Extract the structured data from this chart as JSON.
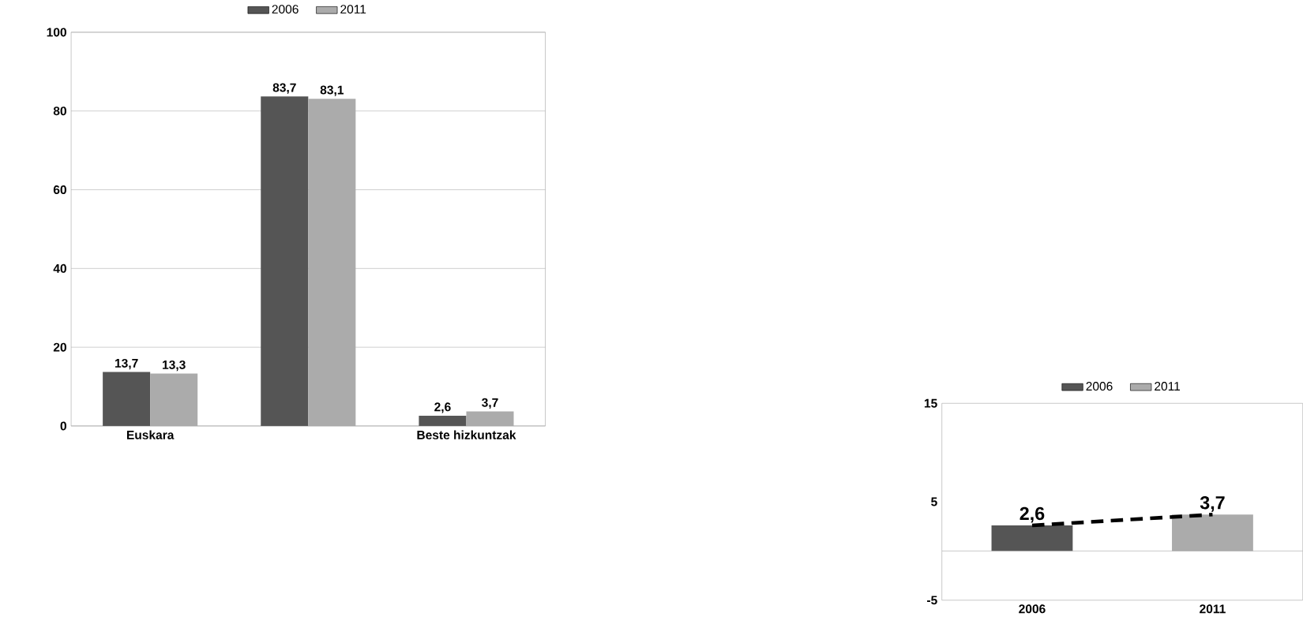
{
  "chart_data": [
    {
      "type": "bar",
      "categories": [
        "Euskara",
        null,
        "Beste hizkuntzak"
      ],
      "series": [
        {
          "name": "2006",
          "color": "#555555",
          "values": [
            13.7,
            83.7,
            2.6
          ],
          "value_labels": [
            "13,7",
            "83,7",
            "2,6"
          ]
        },
        {
          "name": "2011",
          "color": "#ababab",
          "values": [
            13.3,
            83.1,
            3.7
          ],
          "value_labels": [
            "13,3",
            "83,1",
            "3,7"
          ]
        }
      ],
      "ylim": [
        0,
        100
      ],
      "yticks": [
        0,
        20,
        40,
        60,
        80,
        100
      ],
      "grid": "y",
      "legend": "top"
    },
    {
      "type": "bar",
      "categories": [
        "2006",
        "2011"
      ],
      "series": [
        {
          "name": "2006",
          "color": "#555555",
          "values": [
            2.6,
            null
          ],
          "value_labels": [
            "2,6",
            null
          ]
        },
        {
          "name": "2011",
          "color": "#ababab",
          "values": [
            null,
            3.7
          ],
          "value_labels": [
            null,
            "3,7"
          ]
        },
        {
          "type": "line",
          "color": "#000000",
          "line_style": "dashed",
          "values": [
            2.6,
            3.7
          ]
        }
      ],
      "ylim": [
        -5,
        15
      ],
      "yticks": [
        -5,
        5,
        15
      ],
      "legend": "top"
    }
  ]
}
